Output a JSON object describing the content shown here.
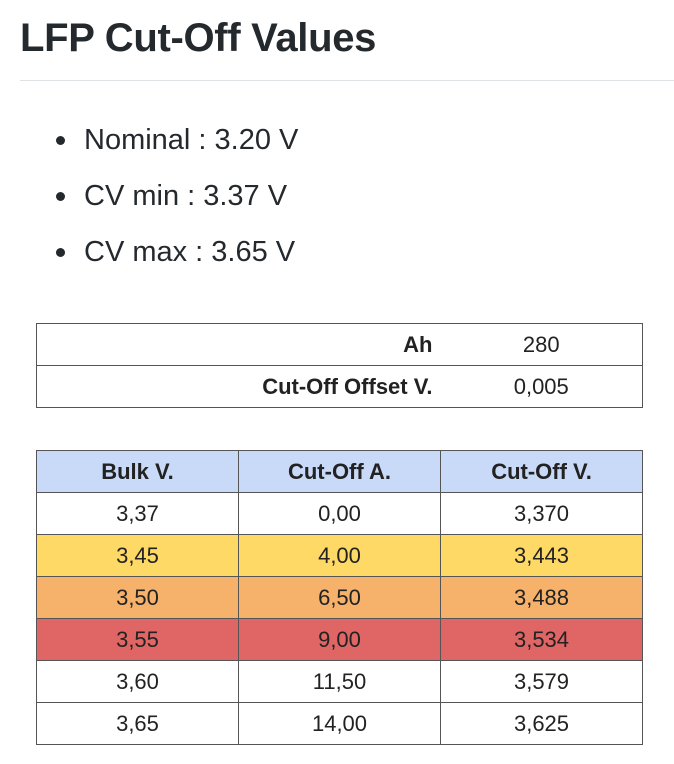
{
  "page": {
    "title": "LFP Cut-Off Values"
  },
  "bullets": [
    "Nominal : 3.20 V",
    "CV min : 3.37 V",
    "CV max : 3.65 V"
  ],
  "params_table": {
    "rows": [
      {
        "label": "Ah",
        "value": "280"
      },
      {
        "label": "Cut-Off Offset V.",
        "value": "0,005"
      }
    ]
  },
  "cutoff_table": {
    "headers": [
      "Bulk V.",
      "Cut-Off A.",
      "Cut-Off V."
    ],
    "colors": {
      "header": "#c9daf8",
      "white": "#ffffff",
      "yellow": "#ffd966",
      "orange": "#f6b26b",
      "red": "#e06666"
    },
    "rows": [
      {
        "bulk_v": "3,37",
        "cutoff_a": "0,00",
        "cutoff_v": "3,370",
        "highlight": "white"
      },
      {
        "bulk_v": "3,45",
        "cutoff_a": "4,00",
        "cutoff_v": "3,443",
        "highlight": "yellow"
      },
      {
        "bulk_v": "3,50",
        "cutoff_a": "6,50",
        "cutoff_v": "3,488",
        "highlight": "orange"
      },
      {
        "bulk_v": "3,55",
        "cutoff_a": "9,00",
        "cutoff_v": "3,534",
        "highlight": "red"
      },
      {
        "bulk_v": "3,60",
        "cutoff_a": "11,50",
        "cutoff_v": "3,579",
        "highlight": "white"
      },
      {
        "bulk_v": "3,65",
        "cutoff_a": "14,00",
        "cutoff_v": "3,625",
        "highlight": "white"
      }
    ]
  }
}
